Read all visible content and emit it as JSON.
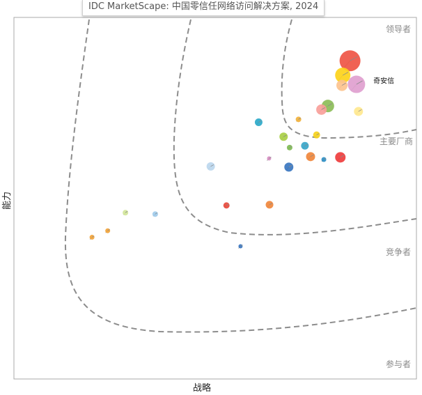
{
  "chart_data": {
    "type": "scatter",
    "title": "IDC MarketScape: 中国零信任网络访问解决方案, 2024",
    "xlabel": "战略",
    "ylabel": "能力",
    "xlim": [
      0,
      1
    ],
    "ylim": [
      0,
      1
    ],
    "grid": false,
    "legend": "none",
    "zones": [
      {
        "name": "领导者"
      },
      {
        "name": "主要厂商"
      },
      {
        "name": "竞争者"
      },
      {
        "name": "参与者"
      }
    ],
    "points": [
      {
        "x": 0.835,
        "y": 0.88,
        "size": 30,
        "color": "#ef5545"
      },
      {
        "x": 0.817,
        "y": 0.84,
        "size": 22,
        "color": "#fdd21a"
      },
      {
        "x": 0.851,
        "y": 0.815,
        "size": 25,
        "color": "#df9fcf"
      },
      {
        "x": 0.815,
        "y": 0.812,
        "size": 16,
        "color": "#fdc38e"
      },
      {
        "x": 0.78,
        "y": 0.755,
        "size": 18,
        "color": "#8cbd58"
      },
      {
        "x": 0.764,
        "y": 0.745,
        "size": 15,
        "color": "#f8a09a"
      },
      {
        "x": 0.856,
        "y": 0.74,
        "size": 13,
        "color": "#ffe88f"
      },
      {
        "x": 0.608,
        "y": 0.71,
        "size": 11,
        "color": "#2da9c9"
      },
      {
        "x": 0.707,
        "y": 0.718,
        "size": 8,
        "color": "#f2b23c"
      },
      {
        "x": 0.752,
        "y": 0.675,
        "size": 10,
        "color": "#f5d11b"
      },
      {
        "x": 0.67,
        "y": 0.67,
        "size": 12,
        "color": "#a9cf45"
      },
      {
        "x": 0.723,
        "y": 0.645,
        "size": 11,
        "color": "#38a6c9"
      },
      {
        "x": 0.685,
        "y": 0.64,
        "size": 8,
        "color": "#7fbb54"
      },
      {
        "x": 0.737,
        "y": 0.615,
        "size": 13,
        "color": "#f0873c"
      },
      {
        "x": 0.811,
        "y": 0.613,
        "size": 15,
        "color": "#ef3d3d"
      },
      {
        "x": 0.634,
        "y": 0.61,
        "size": 6,
        "color": "#d88fc3"
      },
      {
        "x": 0.77,
        "y": 0.607,
        "size": 7,
        "color": "#2c8fc6"
      },
      {
        "x": 0.683,
        "y": 0.586,
        "size": 13,
        "color": "#3a76c0"
      },
      {
        "x": 0.489,
        "y": 0.588,
        "size": 12,
        "color": "#bcd7ee"
      },
      {
        "x": 0.635,
        "y": 0.482,
        "size": 11,
        "color": "#f0873c"
      },
      {
        "x": 0.528,
        "y": 0.48,
        "size": 9,
        "color": "#e8493b"
      },
      {
        "x": 0.277,
        "y": 0.46,
        "size": 8,
        "color": "#d3e69a"
      },
      {
        "x": 0.351,
        "y": 0.456,
        "size": 8,
        "color": "#9fcbea"
      },
      {
        "x": 0.233,
        "y": 0.41,
        "size": 7,
        "color": "#f2a43a"
      },
      {
        "x": 0.194,
        "y": 0.392,
        "size": 7,
        "color": "#f2a43a"
      },
      {
        "x": 0.563,
        "y": 0.367,
        "size": 6,
        "color": "#3a76c0"
      }
    ],
    "annotations": [
      {
        "text": "奇安信",
        "x": 0.893,
        "y": 0.818
      }
    ]
  }
}
